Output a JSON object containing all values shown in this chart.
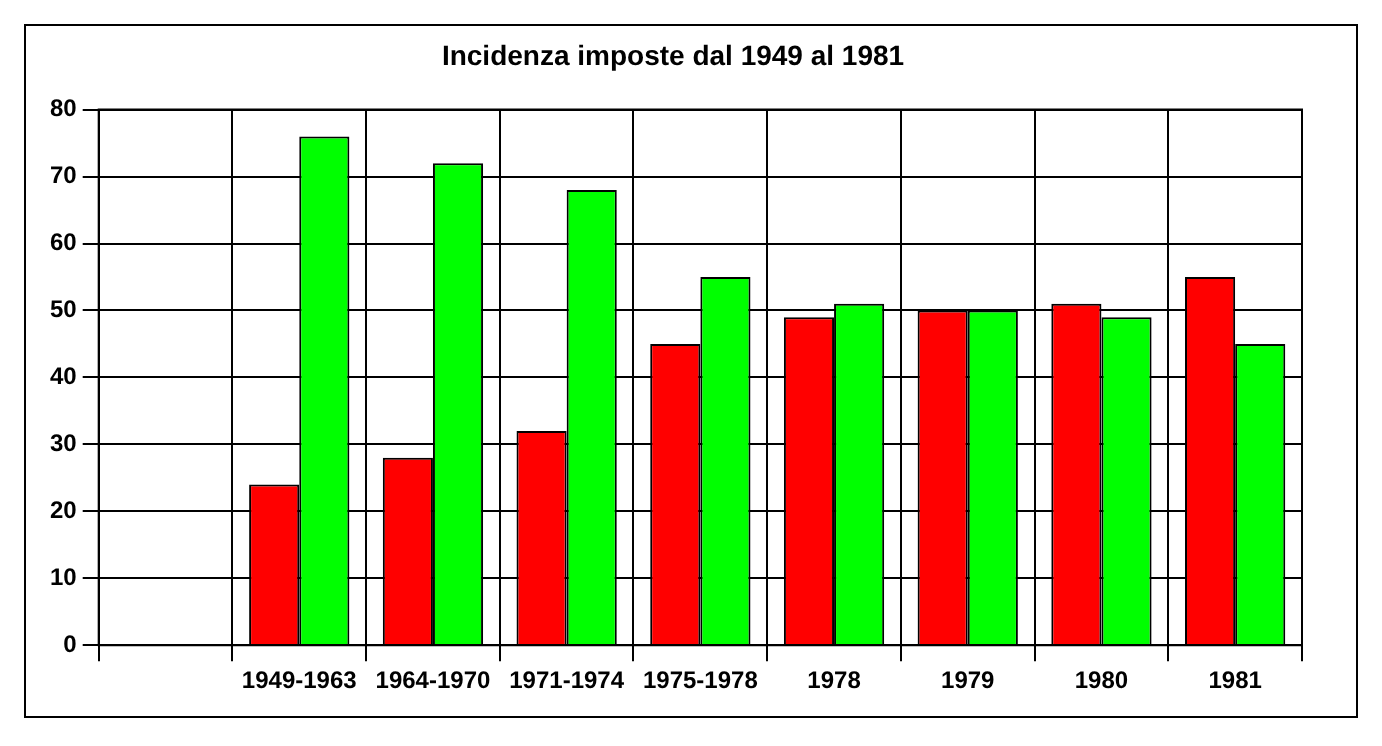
{
  "chart_data": {
    "type": "bar",
    "title": "Incidenza imposte dal 1949 al 1981",
    "categories": [
      null,
      "1949-1963",
      "1964-1970",
      "1971-1974",
      "1975-1978",
      "1978",
      "1979",
      "1980",
      "1981"
    ],
    "series": [
      {
        "color": "#ff0000",
        "values": [
          null,
          24,
          28,
          32,
          45,
          49,
          50,
          51,
          55
        ]
      },
      {
        "color": "#00ff00",
        "values": [
          null,
          76,
          72,
          68,
          55,
          51,
          50,
          49,
          45
        ]
      }
    ],
    "ylim": [
      0,
      80
    ],
    "yticks": [
      0,
      10,
      20,
      30,
      40,
      50,
      60,
      70,
      80
    ],
    "grid": true,
    "legend": false
  }
}
